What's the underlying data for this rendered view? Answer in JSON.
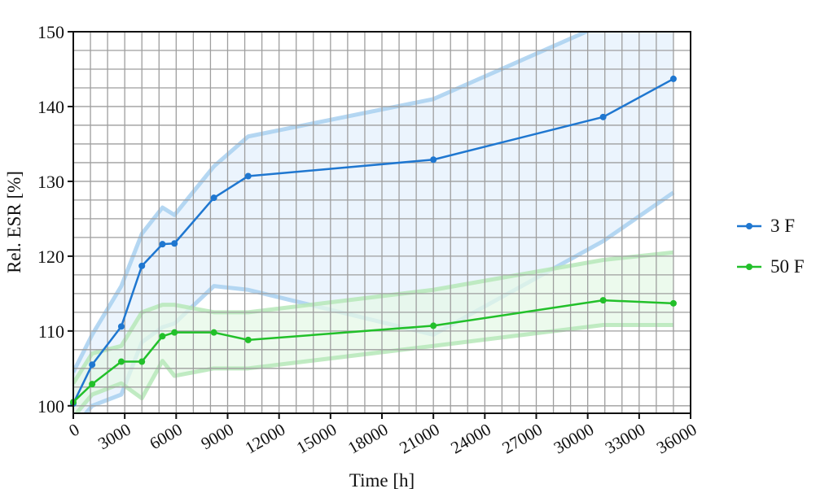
{
  "chart_data": {
    "type": "line",
    "title": "",
    "xlabel": "Time [h]",
    "ylabel": "Rel. ESR [%]",
    "xlim": [
      0,
      36000
    ],
    "ylim": [
      99,
      150
    ],
    "xticks": [
      0,
      3000,
      6000,
      9000,
      12000,
      15000,
      18000,
      21000,
      24000,
      27000,
      30000,
      33000,
      36000
    ],
    "xtick_labels": [
      "0",
      "3000",
      "6000",
      "9000",
      "12000",
      "15000",
      "18000",
      "21000",
      "24000",
      "27000",
      "30000",
      "33000",
      "36000"
    ],
    "yticks": [
      100,
      110,
      120,
      130,
      140,
      150
    ],
    "ytick_labels": [
      "100",
      "110",
      "120",
      "130",
      "140",
      "150"
    ],
    "grid": true,
    "legend_position": "right",
    "series": [
      {
        "name": "3 F",
        "color": "#1f77d0",
        "band_color": "#a8d0f0",
        "band_fill": "#e4f0fc",
        "x": [
          0,
          1100,
          2800,
          4000,
          5200,
          5900,
          8200,
          10200,
          21000,
          30900,
          35000
        ],
        "y": [
          100.3,
          105.5,
          110.6,
          118.7,
          121.6,
          121.7,
          127.8,
          130.7,
          132.9,
          138.6,
          143.7
        ],
        "upper": [
          104.5,
          109.5,
          116.0,
          123.0,
          126.5,
          125.5,
          132.0,
          136.0,
          141.0,
          151.0,
          152.0
        ],
        "lower": [
          97.0,
          100.0,
          101.5,
          108.5,
          110.5,
          111.0,
          116.0,
          115.5,
          109.5,
          122.0,
          128.5
        ]
      },
      {
        "name": "50 F",
        "color": "#22c02a",
        "band_color": "#b6e8b8",
        "band_fill": "#e6f8e7",
        "x": [
          0,
          1100,
          2800,
          4000,
          5200,
          5900,
          8200,
          10200,
          21000,
          30900,
          35000
        ],
        "y": [
          100.5,
          102.9,
          105.9,
          105.9,
          109.3,
          109.8,
          109.8,
          108.8,
          110.7,
          114.1,
          113.7
        ],
        "upper": [
          103.0,
          107.0,
          108.0,
          112.5,
          113.5,
          113.5,
          112.5,
          112.5,
          115.5,
          119.5,
          120.5
        ],
        "lower": [
          98.5,
          101.5,
          103.0,
          101.0,
          106.0,
          104.0,
          105.0,
          105.0,
          108.0,
          110.8,
          110.8
        ]
      }
    ]
  }
}
